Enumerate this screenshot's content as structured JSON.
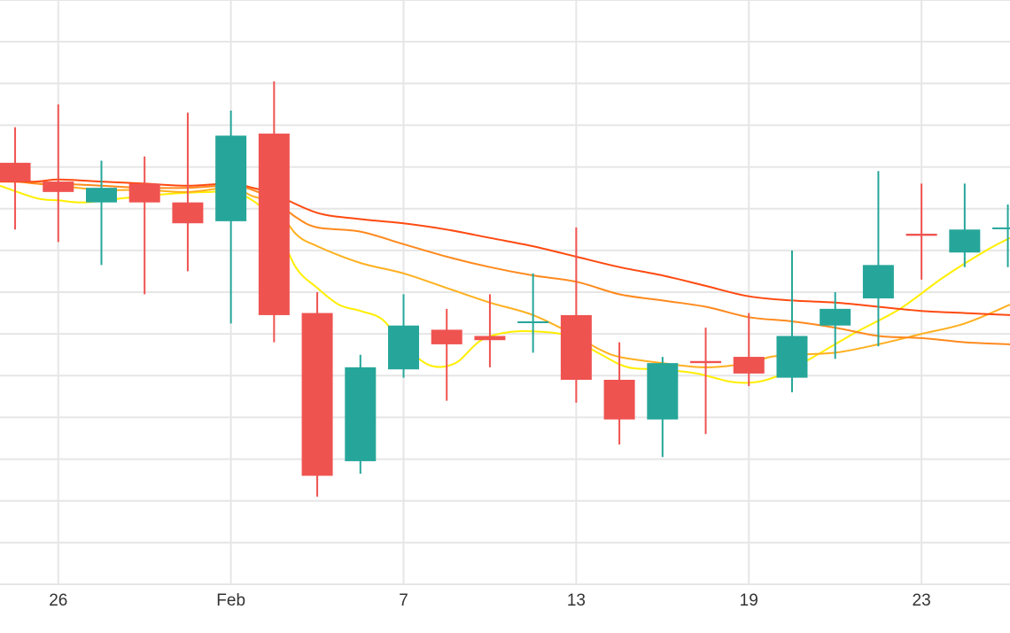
{
  "chart_data": {
    "type": "candlestick",
    "title": "",
    "xlabel": "",
    "ylabel": "",
    "ylim": [
      0,
      14
    ],
    "grid": true,
    "legend": "none",
    "x_ticks": [
      {
        "pos": 1,
        "label": "26"
      },
      {
        "pos": 5,
        "label": "Feb"
      },
      {
        "pos": 9,
        "label": "7"
      },
      {
        "pos": 13,
        "label": "13"
      },
      {
        "pos": 17,
        "label": "19"
      },
      {
        "pos": 21,
        "label": "23"
      }
    ],
    "xlim": [
      -0.35,
      23.05
    ],
    "candles": [
      {
        "x": 0,
        "open": 10.1,
        "close": 9.65,
        "high": 10.95,
        "low": 8.5
      },
      {
        "x": 1,
        "open": 9.65,
        "close": 9.4,
        "high": 11.5,
        "low": 8.2
      },
      {
        "x": 2,
        "open": 9.15,
        "close": 9.5,
        "high": 10.15,
        "low": 7.65
      },
      {
        "x": 3,
        "open": 9.6,
        "close": 9.15,
        "high": 10.25,
        "low": 6.95
      },
      {
        "x": 4,
        "open": 9.15,
        "close": 8.65,
        "high": 11.3,
        "low": 7.5
      },
      {
        "x": 5,
        "open": 8.7,
        "close": 10.75,
        "high": 11.35,
        "low": 6.25
      },
      {
        "x": 6,
        "open": 10.8,
        "close": 6.45,
        "high": 12.05,
        "low": 5.8
      },
      {
        "x": 7,
        "open": 6.5,
        "close": 2.6,
        "high": 7.0,
        "low": 2.1
      },
      {
        "x": 8,
        "open": 2.95,
        "close": 5.2,
        "high": 5.5,
        "low": 2.65
      },
      {
        "x": 9,
        "open": 5.15,
        "close": 6.2,
        "high": 6.95,
        "low": 4.95
      },
      {
        "x": 10,
        "open": 6.1,
        "close": 5.75,
        "high": 6.6,
        "low": 4.4
      },
      {
        "x": 11,
        "open": 5.95,
        "close": 5.85,
        "high": 6.95,
        "low": 5.2
      },
      {
        "x": 12,
        "open": 6.3,
        "close": 6.3,
        "high": 7.45,
        "low": 5.55
      },
      {
        "x": 13,
        "open": 6.45,
        "close": 4.9,
        "high": 8.55,
        "low": 4.35
      },
      {
        "x": 14,
        "open": 4.9,
        "close": 3.95,
        "high": 5.8,
        "low": 3.35
      },
      {
        "x": 15,
        "open": 3.95,
        "close": 5.3,
        "high": 5.45,
        "low": 3.05
      },
      {
        "x": 16,
        "open": 5.35,
        "close": 5.3,
        "high": 6.15,
        "low": 3.6
      },
      {
        "x": 17,
        "open": 5.45,
        "close": 5.05,
        "high": 6.5,
        "low": 4.75
      },
      {
        "x": 18,
        "open": 4.95,
        "close": 5.95,
        "high": 8.0,
        "low": 4.6
      },
      {
        "x": 19,
        "open": 6.2,
        "close": 6.6,
        "high": 7.0,
        "low": 5.4
      },
      {
        "x": 20,
        "open": 6.85,
        "close": 7.65,
        "high": 9.9,
        "low": 5.7
      },
      {
        "x": 21,
        "open": 8.4,
        "close": 8.35,
        "high": 9.6,
        "low": 7.3
      },
      {
        "x": 22,
        "open": 7.95,
        "close": 8.5,
        "high": 9.6,
        "low": 7.6
      },
      {
        "x": 23,
        "open": 8.55,
        "close": 8.55,
        "high": 9.1,
        "low": 7.6
      }
    ],
    "moving_averages": [
      {
        "color": "#ffee00",
        "points": [
          [
            -0.35,
            9.55
          ],
          [
            0.5,
            9.25
          ],
          [
            1,
            9.2
          ],
          [
            1.6,
            9.15
          ],
          [
            2.5,
            9.25
          ],
          [
            3.5,
            9.35
          ],
          [
            4.5,
            9.4
          ],
          [
            5,
            9.4
          ],
          [
            5.5,
            9.2
          ],
          [
            6,
            8.7
          ],
          [
            6.5,
            7.6
          ],
          [
            7,
            7.1
          ],
          [
            7.5,
            6.7
          ],
          [
            8,
            6.55
          ],
          [
            8.5,
            6.35
          ],
          [
            9,
            5.75
          ],
          [
            9.6,
            5.25
          ],
          [
            10.2,
            5.3
          ],
          [
            10.8,
            5.85
          ],
          [
            11.5,
            6.05
          ],
          [
            12.2,
            6.05
          ],
          [
            12.8,
            5.95
          ],
          [
            13.5,
            5.55
          ],
          [
            14.2,
            5.2
          ],
          [
            15,
            5.15
          ],
          [
            15.8,
            5.05
          ],
          [
            16.6,
            4.85
          ],
          [
            17.2,
            4.85
          ],
          [
            17.8,
            5.05
          ],
          [
            18.5,
            5.45
          ],
          [
            19.5,
            6.05
          ],
          [
            20.5,
            6.6
          ],
          [
            21.5,
            7.35
          ],
          [
            22.5,
            8.0
          ],
          [
            23.05,
            8.3
          ]
        ]
      },
      {
        "color": "#ffb020",
        "points": [
          [
            -0.35,
            9.75
          ],
          [
            0.5,
            9.6
          ],
          [
            1,
            9.55
          ],
          [
            2,
            9.45
          ],
          [
            3,
            9.45
          ],
          [
            4,
            9.4
          ],
          [
            5,
            9.5
          ],
          [
            5.5,
            9.3
          ],
          [
            6,
            9.1
          ],
          [
            6.5,
            8.4
          ],
          [
            7,
            8.1
          ],
          [
            8,
            7.7
          ],
          [
            9,
            7.45
          ],
          [
            10,
            7.1
          ],
          [
            11,
            6.75
          ],
          [
            12,
            6.45
          ],
          [
            13,
            5.95
          ],
          [
            13.5,
            5.65
          ],
          [
            14,
            5.45
          ],
          [
            15,
            5.3
          ],
          [
            16,
            5.2
          ],
          [
            17,
            5.3
          ],
          [
            17.5,
            5.45
          ],
          [
            18,
            5.5
          ],
          [
            19,
            5.55
          ],
          [
            20,
            5.75
          ],
          [
            21,
            6.0
          ],
          [
            22,
            6.25
          ],
          [
            23.05,
            6.7
          ]
        ]
      },
      {
        "color": "#ff8a1e",
        "points": [
          [
            -0.35,
            9.7
          ],
          [
            0.5,
            9.6
          ],
          [
            1,
            9.6
          ],
          [
            2,
            9.55
          ],
          [
            3,
            9.5
          ],
          [
            4,
            9.5
          ],
          [
            5,
            9.55
          ],
          [
            5.5,
            9.45
          ],
          [
            6,
            9.2
          ],
          [
            6.5,
            8.8
          ],
          [
            7,
            8.55
          ],
          [
            8,
            8.45
          ],
          [
            9,
            8.15
          ],
          [
            10,
            7.85
          ],
          [
            11,
            7.6
          ],
          [
            12,
            7.4
          ],
          [
            13,
            7.25
          ],
          [
            14,
            6.95
          ],
          [
            15,
            6.8
          ],
          [
            16,
            6.65
          ],
          [
            17,
            6.4
          ],
          [
            18,
            6.3
          ],
          [
            19,
            6.15
          ],
          [
            20,
            5.95
          ],
          [
            21,
            5.9
          ],
          [
            22,
            5.8
          ],
          [
            23.05,
            5.75
          ]
        ]
      },
      {
        "color": "#ff4a10",
        "points": [
          [
            -0.35,
            9.65
          ],
          [
            0.5,
            9.65
          ],
          [
            1,
            9.7
          ],
          [
            2,
            9.65
          ],
          [
            3,
            9.6
          ],
          [
            4,
            9.55
          ],
          [
            5,
            9.6
          ],
          [
            5.5,
            9.5
          ],
          [
            6,
            9.35
          ],
          [
            7,
            8.9
          ],
          [
            8,
            8.75
          ],
          [
            9,
            8.65
          ],
          [
            10,
            8.5
          ],
          [
            11,
            8.3
          ],
          [
            12,
            8.1
          ],
          [
            13,
            7.85
          ],
          [
            14,
            7.6
          ],
          [
            15,
            7.4
          ],
          [
            16,
            7.15
          ],
          [
            17,
            6.9
          ],
          [
            18,
            6.8
          ],
          [
            19,
            6.75
          ],
          [
            20,
            6.65
          ],
          [
            21,
            6.55
          ],
          [
            22,
            6.5
          ],
          [
            23.05,
            6.45
          ]
        ]
      }
    ],
    "colors": {
      "up": "#26a69a",
      "down": "#ef5350",
      "grid": "#e6e6e6"
    }
  }
}
